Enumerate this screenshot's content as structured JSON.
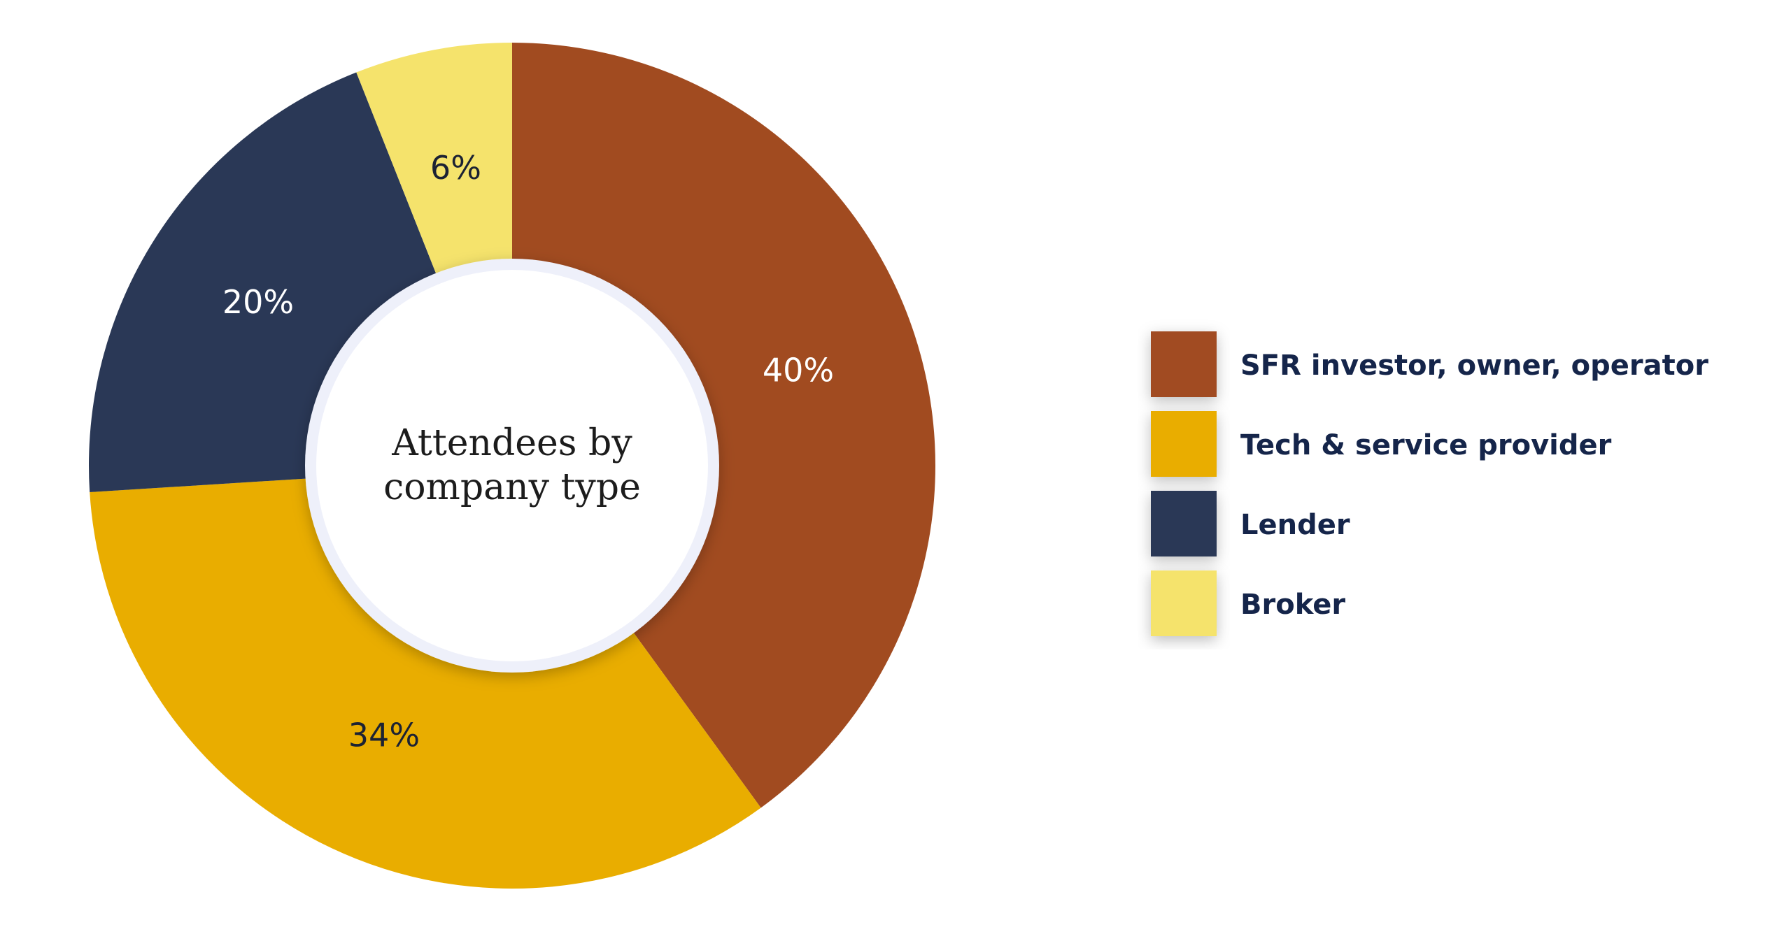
{
  "chart_data": {
    "type": "donut",
    "title": "Attendees by company type",
    "categories": [
      "SFR investor, owner, operator",
      "Tech & service provider",
      "Lender",
      "Broker"
    ],
    "values": [
      40,
      34,
      20,
      6
    ],
    "value_labels": [
      "40%",
      "34%",
      "20%",
      "6%"
    ],
    "colors": [
      "#a14b20",
      "#e9ad00",
      "#2a3856",
      "#f5e36c"
    ],
    "value_label_colors": [
      "#ffffff",
      "#1c2233",
      "#ffffff",
      "#1c2233"
    ],
    "legend": "right"
  }
}
